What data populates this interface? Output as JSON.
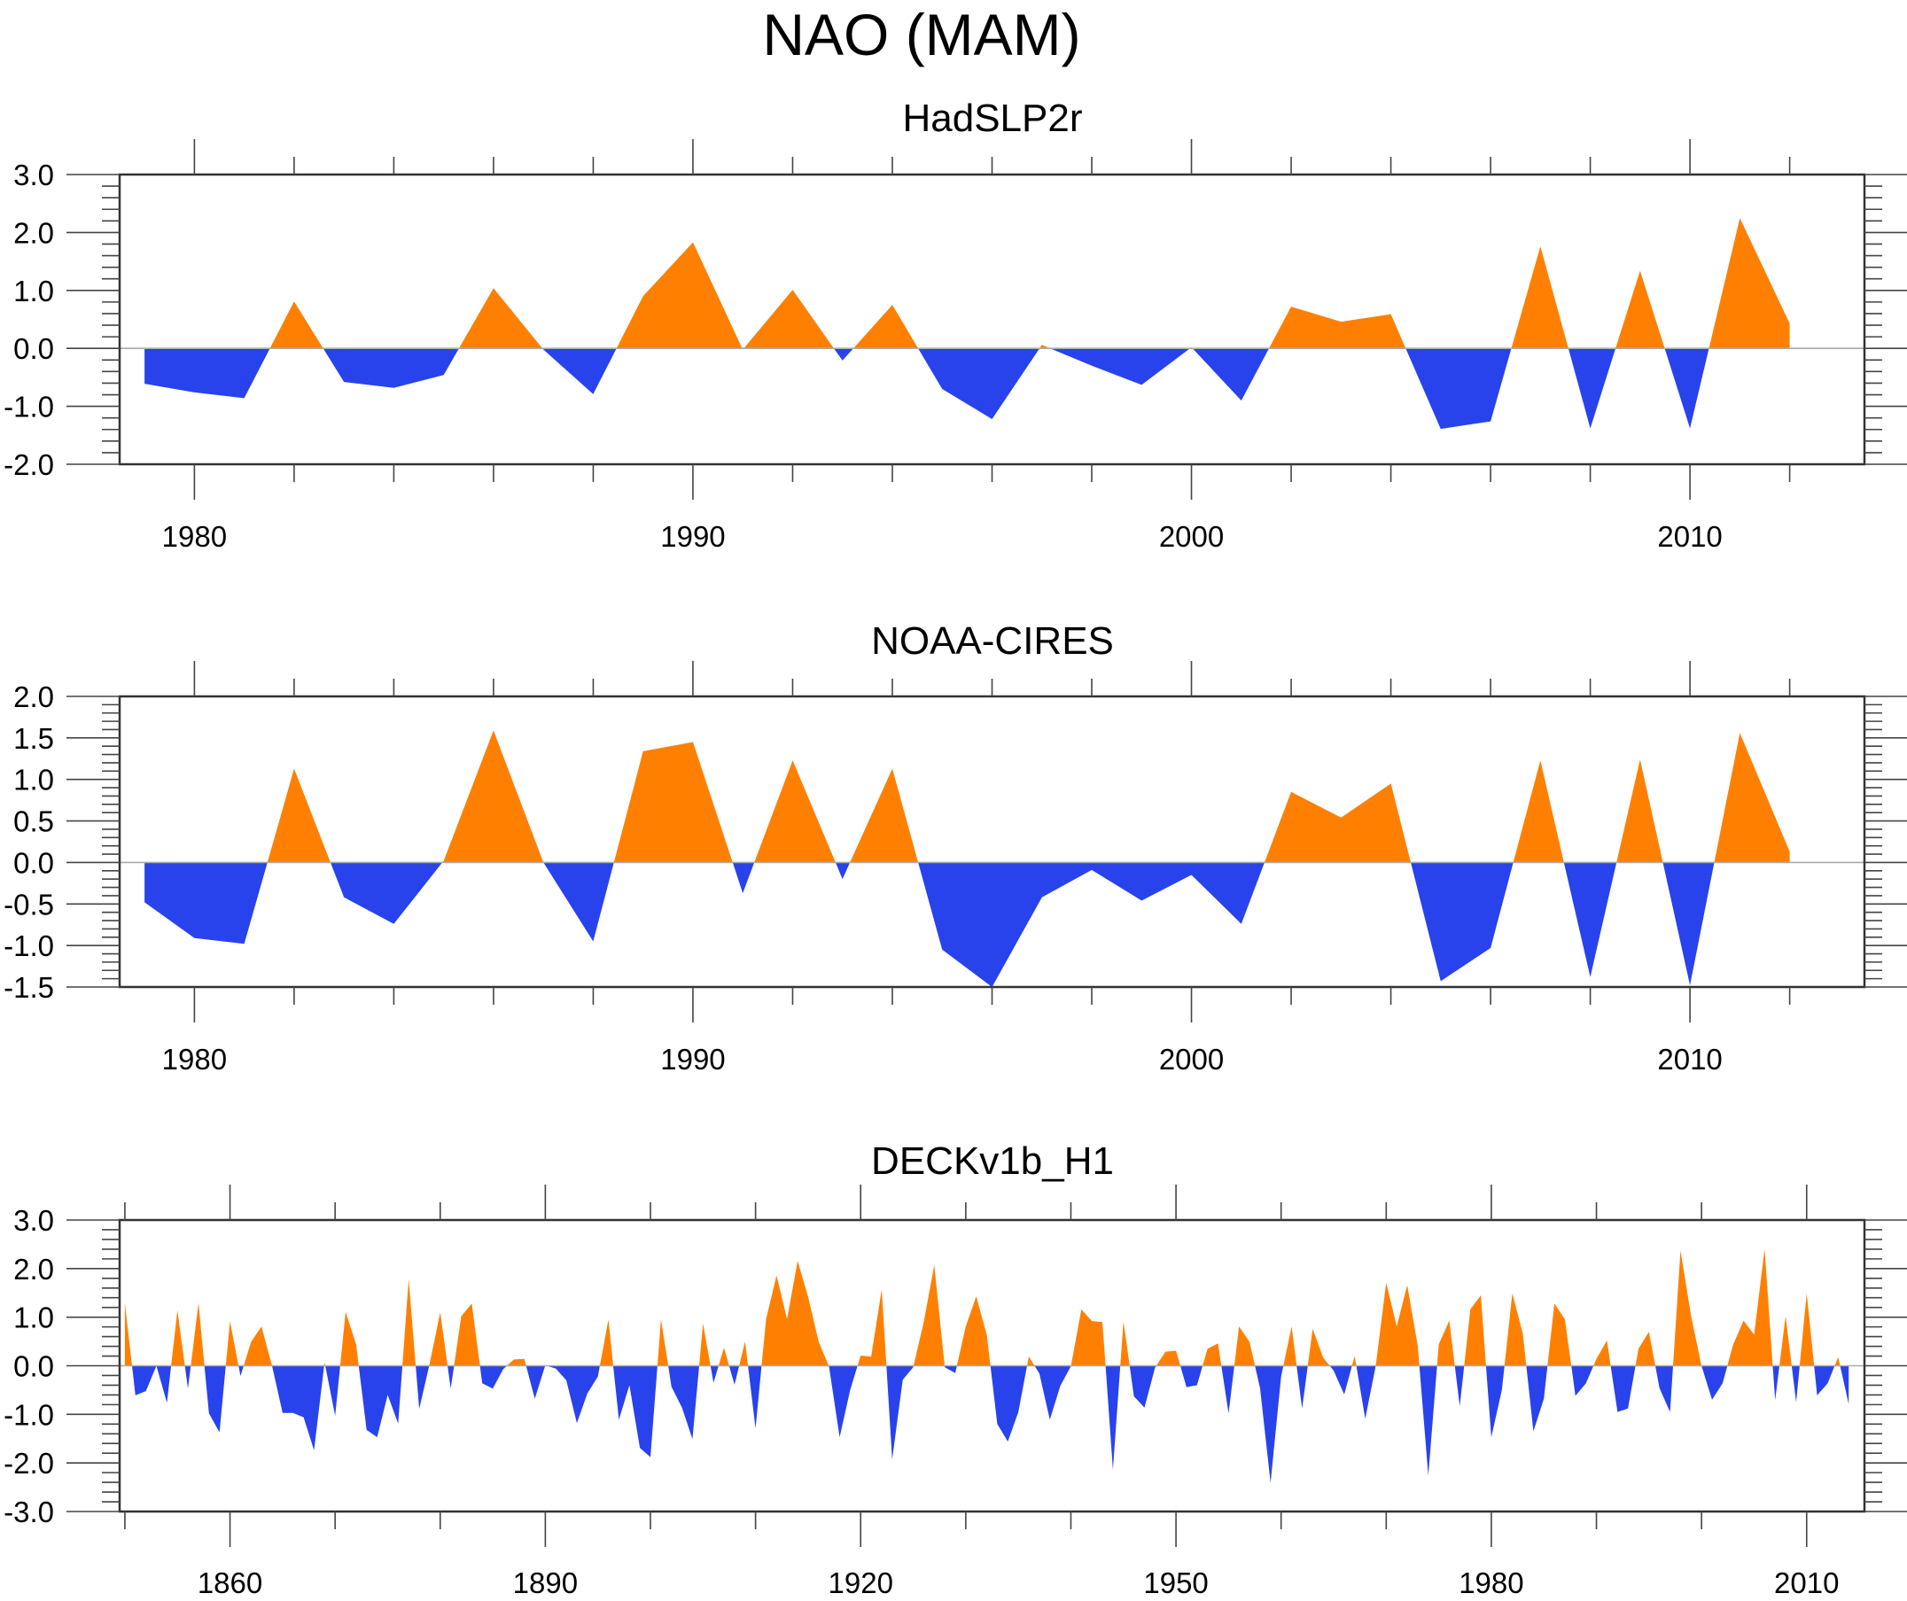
{
  "figure": {
    "title": "NAO (MAM)",
    "colors": {
      "positive": "#ff8000",
      "negative": "#2843eb",
      "zero_line": "#aaaaaa"
    }
  },
  "chart_data": [
    {
      "type": "area",
      "title": "HadSLP2r",
      "xlabel": "",
      "ylabel": "",
      "xlim": [
        1978.5,
        2013.5
      ],
      "ylim": [
        -2.0,
        3.0
      ],
      "yticks": [
        -2.0,
        -1.0,
        0.0,
        1.0,
        2.0,
        3.0
      ],
      "ytick_labels": [
        "-2.0",
        "-1.0",
        "0.0",
        "1.0",
        "2.0",
        "3.0"
      ],
      "yminor_step": 0.2,
      "xticks": [
        1980,
        1990,
        2000,
        2010
      ],
      "xtick_labels": [
        "1980",
        "1990",
        "2000",
        "2010"
      ],
      "xminor_step": 2,
      "grid": false,
      "fill": "positive-orange / negative-blue about 0",
      "x": [
        1979,
        1980,
        1981,
        1982,
        1983,
        1984,
        1985,
        1986,
        1987,
        1988,
        1989,
        1990,
        1991,
        1992,
        1993,
        1994,
        1995,
        1996,
        1997,
        1998,
        1999,
        2000,
        2001,
        2002,
        2003,
        2004,
        2005,
        2006,
        2007,
        2008,
        2009,
        2010,
        2011,
        2012
      ],
      "values": [
        -0.61,
        -0.76,
        -0.86,
        0.81,
        -0.58,
        -0.68,
        -0.46,
        1.04,
        -0.02,
        -0.79,
        0.9,
        1.83,
        -0.02,
        1.01,
        -0.21,
        0.75,
        -0.7,
        -1.22,
        0.06,
        -0.3,
        -0.63,
        0.02,
        -0.9,
        0.72,
        0.46,
        0.59,
        -1.39,
        -1.26,
        1.76,
        -1.38,
        1.34,
        -1.38,
        2.25,
        0.43
      ]
    },
    {
      "type": "area",
      "title": "NOAA-CIRES",
      "xlabel": "",
      "ylabel": "",
      "xlim": [
        1978.5,
        2013.5
      ],
      "ylim": [
        -1.5,
        2.0
      ],
      "yticks": [
        -1.5,
        -1.0,
        -0.5,
        0.0,
        0.5,
        1.0,
        1.5,
        2.0
      ],
      "ytick_labels": [
        "-1.5",
        "-1.0",
        "-0.5",
        "0.0",
        "0.5",
        "1.0",
        "1.5",
        "2.0"
      ],
      "yminor_step": 0.1,
      "xticks": [
        1980,
        1990,
        2000,
        2010
      ],
      "xtick_labels": [
        "1980",
        "1990",
        "2000",
        "2010"
      ],
      "xminor_step": 2,
      "grid": false,
      "fill": "positive-orange / negative-blue about 0",
      "x": [
        1979,
        1980,
        1981,
        1982,
        1983,
        1984,
        1985,
        1986,
        1987,
        1988,
        1989,
        1990,
        1991,
        1992,
        1993,
        1994,
        1995,
        1996,
        1997,
        1998,
        1999,
        2000,
        2001,
        2002,
        2003,
        2004,
        2005,
        2006,
        2007,
        2008,
        2009,
        2010,
        2011,
        2012
      ],
      "values": [
        -0.48,
        -0.91,
        -0.98,
        1.13,
        -0.42,
        -0.74,
        0.02,
        1.59,
        0.0,
        -0.95,
        1.34,
        1.45,
        -0.37,
        1.23,
        -0.2,
        1.13,
        -1.05,
        -1.5,
        -0.42,
        -0.09,
        -0.46,
        -0.15,
        -0.74,
        0.85,
        0.54,
        0.95,
        -1.43,
        -1.03,
        1.23,
        -1.38,
        1.24,
        -1.48,
        1.56,
        0.13
      ]
    },
    {
      "type": "area",
      "title": "DECKv1b_H1",
      "xlabel": "",
      "ylabel": "",
      "xlim": [
        1849.5,
        2015.5
      ],
      "ylim": [
        -3.0,
        3.0
      ],
      "yticks": [
        -3.0,
        -2.0,
        -1.0,
        0.0,
        1.0,
        2.0,
        3.0
      ],
      "ytick_labels": [
        "-3.0",
        "-2.0",
        "-1.0",
        "0.0",
        "1.0",
        "2.0",
        "3.0"
      ],
      "yminor_step": 0.2,
      "xticks": [
        1860,
        1890,
        1920,
        1950,
        1980,
        2010
      ],
      "xtick_labels": [
        "1860",
        "1890",
        "1920",
        "1950",
        "1980",
        "2010"
      ],
      "xminor_step": 10,
      "grid": false,
      "fill": "positive-orange / negative-blue about 0",
      "x_start": 1850,
      "x_step": 1,
      "values": [
        1.29,
        -0.61,
        -0.52,
        0.0,
        -0.76,
        1.14,
        -0.47,
        1.29,
        -0.98,
        -1.37,
        0.92,
        -0.21,
        0.49,
        0.81,
        0.0,
        -0.97,
        -0.97,
        -1.06,
        -1.74,
        0.07,
        -1.03,
        1.11,
        0.44,
        -1.32,
        -1.47,
        -0.6,
        -1.19,
        1.78,
        -0.89,
        0.05,
        1.1,
        -0.47,
        1.02,
        1.28,
        -0.36,
        -0.47,
        -0.07,
        0.13,
        0.14,
        -0.68,
        0.01,
        -0.06,
        -0.3,
        -1.18,
        -0.57,
        -0.22,
        0.95,
        -1.11,
        -0.4,
        -1.69,
        -1.88,
        0.96,
        -0.43,
        -0.86,
        -1.51,
        0.87,
        -0.35,
        0.37,
        -0.39,
        0.5,
        -1.29,
        0.96,
        1.86,
        0.96,
        2.16,
        1.42,
        0.5,
        -0.02,
        -1.47,
        -0.5,
        0.21,
        0.19,
        1.57,
        -1.93,
        -0.29,
        -0.03,
        0.9,
        2.07,
        -0.03,
        -0.15,
        0.81,
        1.43,
        0.63,
        -1.2,
        -1.56,
        -0.95,
        0.19,
        -0.16,
        -1.11,
        -0.41,
        -0.01,
        1.16,
        0.92,
        0.9,
        -2.14,
        0.91,
        -0.63,
        -0.86,
        -0.04,
        0.29,
        0.31,
        -0.44,
        -0.4,
        0.35,
        0.46,
        -0.98,
        0.81,
        0.49,
        -0.47,
        -2.41,
        -0.22,
        0.81,
        -0.88,
        0.76,
        0.17,
        -0.1,
        -0.59,
        0.2,
        -1.09,
        -0.01,
        1.71,
        0.81,
        1.66,
        0.41,
        -2.26,
        0.44,
        0.93,
        -0.83,
        1.16,
        1.45,
        -1.47,
        -0.5,
        1.49,
        0.66,
        -1.35,
        -0.68,
        1.28,
        0.96,
        -0.62,
        -0.36,
        0.14,
        0.52,
        -0.95,
        -0.88,
        0.35,
        0.7,
        -0.46,
        -0.95,
        2.37,
        1.03,
        0.0,
        -0.7,
        -0.36,
        0.43,
        0.93,
        0.64,
        2.4,
        -0.71,
        1.02,
        -0.75,
        1.49,
        -0.61,
        -0.36,
        0.18,
        -0.79
      ]
    }
  ]
}
